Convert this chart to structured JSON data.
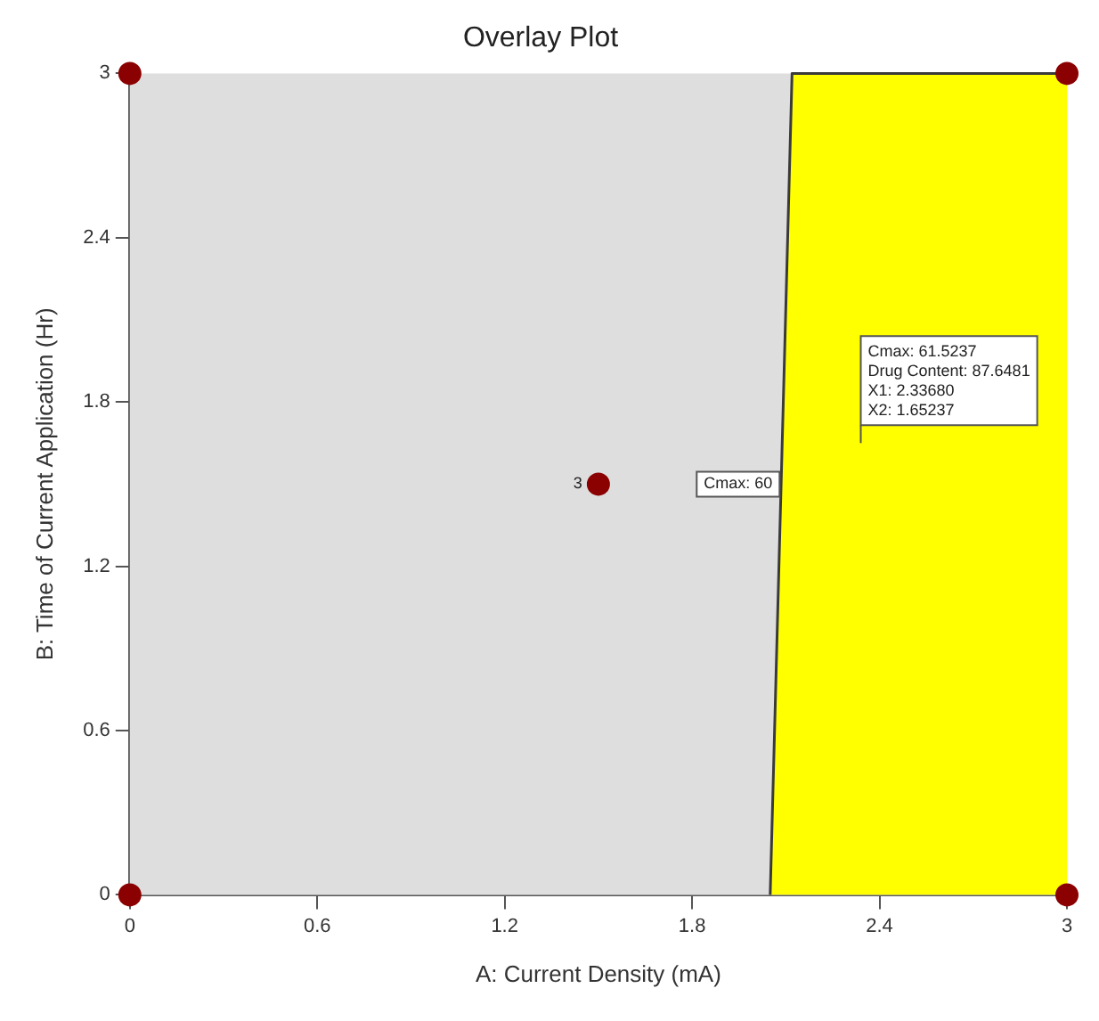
{
  "chart_data": {
    "type": "area",
    "title": "Overlay Plot",
    "xlabel": "A: Current Density (mA)",
    "ylabel": "B: Time of Current Application (Hr)",
    "xlim": [
      0,
      3
    ],
    "ylim": [
      0,
      3
    ],
    "xticks": [
      0,
      0.6,
      1.2,
      1.8,
      2.4,
      3
    ],
    "yticks": [
      0,
      0.6,
      1.2,
      1.8,
      2.4,
      3
    ],
    "grid": false,
    "legend": false,
    "series": [
      {
        "color": "#ffff00",
        "x": [
          2.05,
          2.12,
          3
        ],
        "values": [
          0,
          3,
          3
        ]
      },
      {
        "type": "scatter",
        "marker": "circle",
        "color": "#8b0000",
        "x": [
          0,
          3,
          0,
          3,
          1.5
        ],
        "values": [
          0,
          0,
          3,
          3,
          1.5
        ]
      }
    ],
    "annotations": [
      {
        "text": "3",
        "x": 1.5,
        "y": 1.5
      },
      {
        "text": "Cmax: 60",
        "x": 2.08,
        "y": 1.5
      },
      "Cmax: 61.5237\nDrug Content: 87.6481\nX1: 2.33680\nX2: 1.65237"
    ]
  }
}
